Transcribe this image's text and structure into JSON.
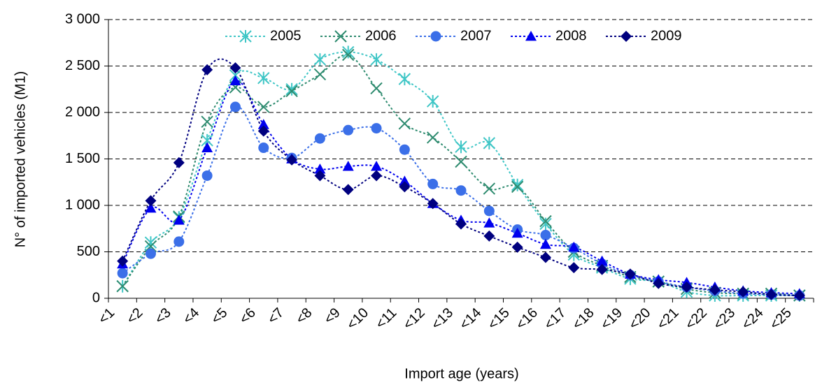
{
  "chart_data": {
    "type": "line",
    "xlabel": "Import age (years)",
    "ylabel": "N° of imported vehicles (M1)",
    "categories": [
      "<1",
      "<2",
      "<3",
      "<4",
      "<5",
      "<6",
      "<7",
      "<8",
      "<9",
      "<10",
      "<11",
      "<12",
      "<13",
      "<14",
      "<15",
      "<16",
      "<17",
      "<18",
      "<19",
      "<20",
      "<21",
      "<22",
      "<23",
      "<24",
      "<25"
    ],
    "series": [
      {
        "name": "2005",
        "color": "#3fc6c6",
        "marker": "asterisk",
        "values": [
          130,
          600,
          870,
          1700,
          2400,
          2370,
          2250,
          2570,
          2650,
          2570,
          2360,
          2120,
          1630,
          1670,
          1220,
          800,
          470,
          330,
          210,
          180,
          70,
          30,
          30,
          30,
          30
        ]
      },
      {
        "name": "2006",
        "color": "#2e8b6f",
        "marker": "x",
        "values": [
          130,
          560,
          880,
          1900,
          2270,
          2060,
          2230,
          2410,
          2620,
          2260,
          1880,
          1730,
          1470,
          1180,
          1200,
          830,
          500,
          350,
          230,
          180,
          100,
          60,
          50,
          50,
          30
        ]
      },
      {
        "name": "2007",
        "color": "#3b6fe8",
        "marker": "circle",
        "values": [
          270,
          480,
          610,
          1320,
          2060,
          1620,
          1510,
          1720,
          1810,
          1830,
          1600,
          1230,
          1160,
          940,
          740,
          680,
          540,
          370,
          250,
          180,
          120,
          80,
          50,
          40,
          30
        ]
      },
      {
        "name": "2008",
        "color": "#0000ee",
        "marker": "triangle",
        "values": [
          370,
          970,
          840,
          1620,
          2340,
          1870,
          1500,
          1390,
          1420,
          1420,
          1260,
          1020,
          840,
          810,
          700,
          580,
          550,
          400,
          260,
          200,
          170,
          120,
          80,
          60,
          50
        ]
      },
      {
        "name": "2009",
        "color": "#00007f",
        "marker": "diamond",
        "values": [
          400,
          1050,
          1460,
          2460,
          2480,
          1800,
          1490,
          1320,
          1170,
          1320,
          1200,
          1020,
          800,
          670,
          550,
          440,
          330,
          310,
          260,
          160,
          120,
          90,
          70,
          40,
          30
        ]
      }
    ],
    "ylim": [
      0,
      3000
    ],
    "yticks": [
      0,
      {
        "value": 500,
        "label": "500"
      },
      {
        "value": 1000,
        "label": "1 000"
      },
      {
        "value": 1500,
        "label": "1 500"
      },
      {
        "value": 2000,
        "label": "2 000"
      },
      {
        "value": 2500,
        "label": "2 500"
      },
      {
        "value": 3000,
        "label": "3 000"
      }
    ],
    "grid": true,
    "legend": "top"
  }
}
